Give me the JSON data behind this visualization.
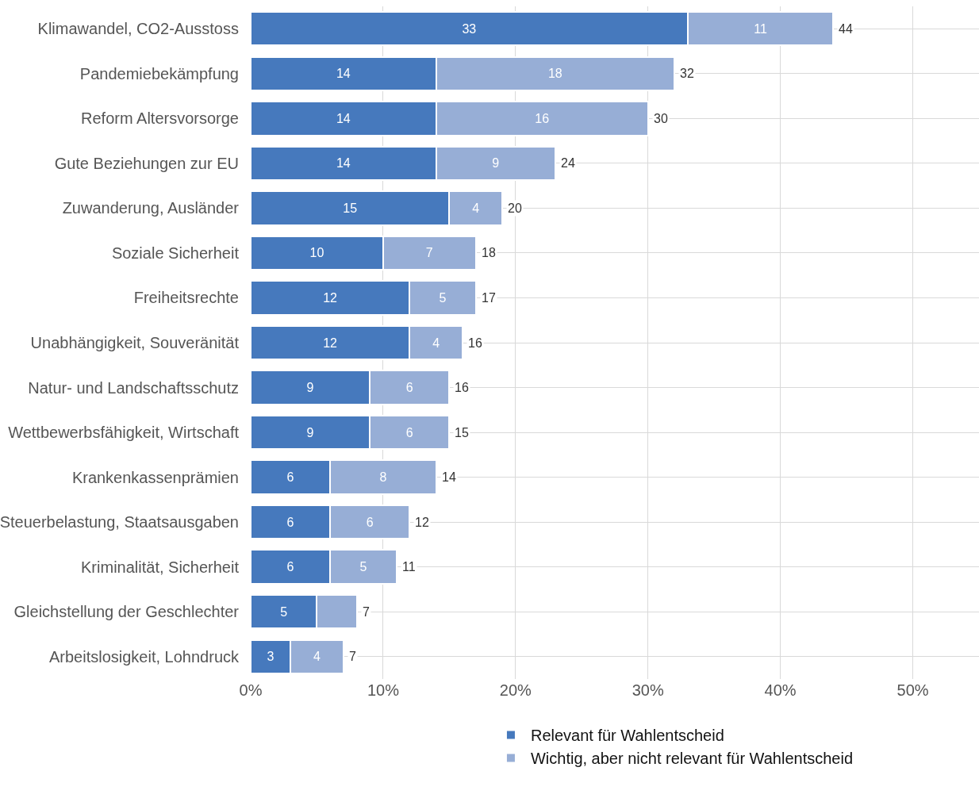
{
  "chart_data": {
    "type": "bar",
    "orientation": "horizontal",
    "stacked": true,
    "categories": [
      "Klimawandel, CO2-Ausstoss",
      "Pandemiebekämpfung",
      "Reform Altersvorsorge",
      "Gute Beziehungen zur EU",
      "Zuwanderung, Ausländer",
      "Soziale Sicherheit",
      "Freiheitsrechte",
      "Unabhängigkeit, Souveränität",
      "Natur- und Landschaftsschutz",
      "Wettbewerbsfähigkeit, Wirtschaft",
      "Krankenkassenprämien",
      "Steuerbelastung, Staatsausgaben",
      "Kriminalität, Sicherheit",
      "Gleichstellung der Geschlechter",
      "Arbeitslosigkeit, Lohndruck"
    ],
    "series": [
      {
        "name": "Relevant für Wahlentscheid",
        "color": "#4679bd",
        "values": [
          33,
          14,
          14,
          14,
          15,
          10,
          12,
          12,
          9,
          9,
          6,
          6,
          6,
          5,
          3
        ]
      },
      {
        "name": "Wichtig, aber nicht relevant für Wahlentscheid",
        "color": "#97aed6",
        "value_labels": [
          "11",
          "18",
          "16",
          "9",
          "4",
          "7",
          "5",
          "4",
          "6",
          "6",
          "8",
          "6",
          "5",
          null,
          "4"
        ],
        "values": [
          11,
          18,
          16,
          9,
          4,
          7,
          5,
          4,
          6,
          6,
          8,
          6,
          5,
          3,
          4
        ]
      }
    ],
    "totals": [
      "44",
      "32",
      "30",
      "24",
      "20",
      "18",
      "17",
      "16",
      "16",
      "15",
      "14",
      "12",
      "11",
      "7",
      "7"
    ],
    "data_labels": true,
    "xlim": [
      0,
      55
    ],
    "xticks": [
      {
        "value": 0,
        "label": "0%"
      },
      {
        "value": 10,
        "label": "10%"
      },
      {
        "value": 20,
        "label": "20%"
      },
      {
        "value": 30,
        "label": "30%"
      },
      {
        "value": 40,
        "label": "40%"
      },
      {
        "value": 50,
        "label": "50%"
      }
    ],
    "grid": true,
    "legend": "bottom"
  }
}
